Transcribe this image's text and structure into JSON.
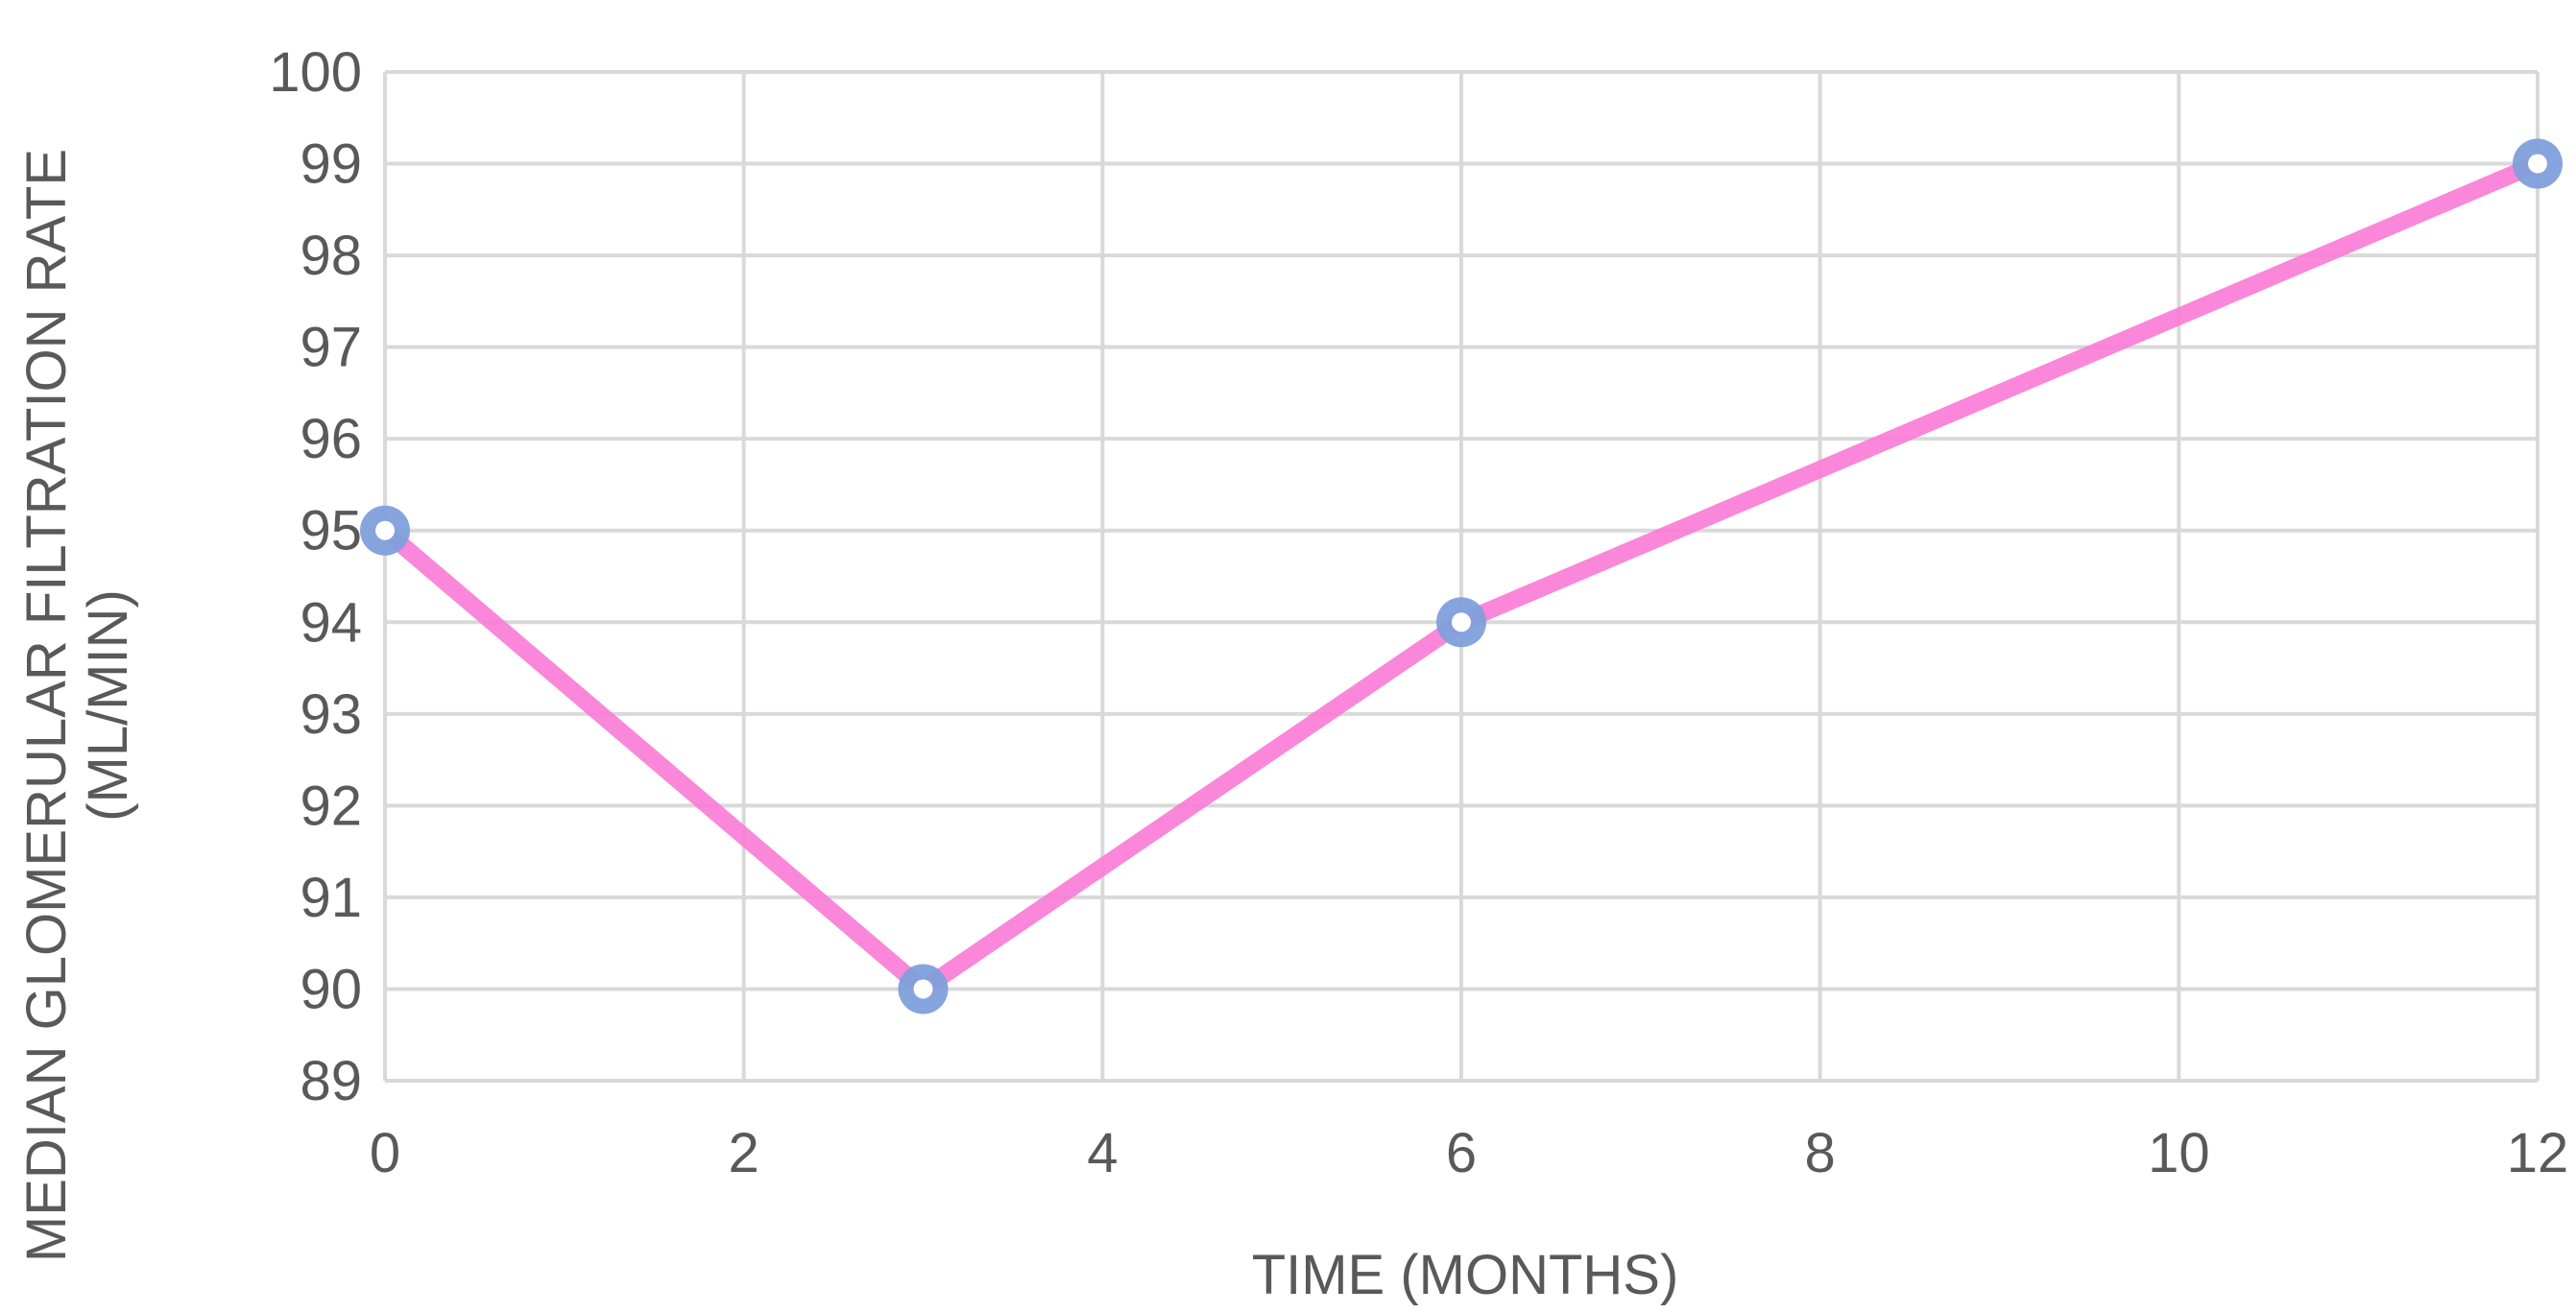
{
  "chart_data": {
    "type": "line",
    "title": "",
    "xlabel": "TIME (MONTHS)",
    "ylabel": "MEDIAN GLOMERULAR FILTRATION RATE",
    "ylabel_unit": "(ML/MIN)",
    "xlim": [
      0,
      12
    ],
    "ylim": [
      89,
      100
    ],
    "x_ticks": [
      0,
      2,
      4,
      6,
      8,
      10,
      12
    ],
    "y_ticks": [
      89,
      90,
      91,
      92,
      93,
      94,
      95,
      96,
      97,
      98,
      99,
      100
    ],
    "grid": true,
    "legend": "none",
    "series": [
      {
        "x": [
          0,
          3,
          6,
          12
        ],
        "y": [
          95,
          90,
          94,
          99
        ]
      }
    ],
    "colors": {
      "line": "#f97ad6",
      "marker": "#7f9fdb",
      "marker_center": "#ffffff",
      "grid": "#d9d9d9",
      "text": "#595959"
    }
  }
}
